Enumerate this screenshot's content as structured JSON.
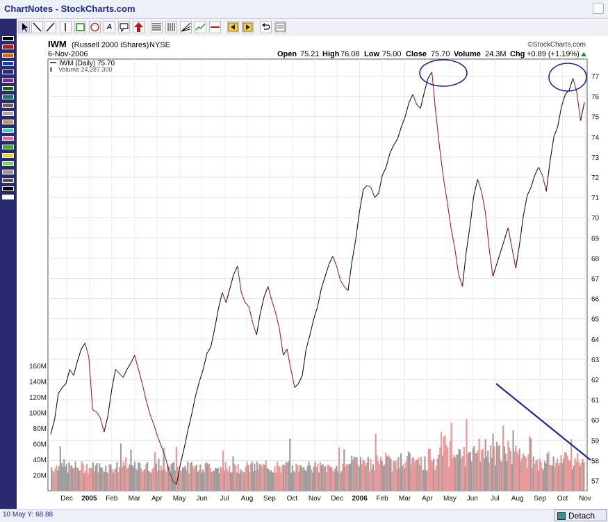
{
  "app": {
    "title": "ChartNotes - StockCharts.com"
  },
  "toolbar": {
    "tools": [
      "pointer",
      "line",
      "ray",
      "vertical-line",
      "rectangle",
      "ellipse",
      "text",
      "callout",
      "arrow",
      "horizontal-lines",
      "vertical-lines",
      "fibonacci",
      "trendline-tool",
      "hline-tool",
      "back",
      "forward",
      "undo",
      "properties"
    ]
  },
  "palette": {
    "colors": [
      "#000000",
      "#cc1111",
      "#dd6611",
      "#1133dd",
      "#2222aa",
      "#882299",
      "#116611",
      "#117777",
      "#666666",
      "#aaaaaa",
      "#bb9966",
      "#44cccc",
      "#ee66aa",
      "#22bb22",
      "#dddd22",
      "#66dd66",
      "#999999",
      "#555555",
      "#000000",
      "#ffffff"
    ]
  },
  "chart": {
    "symbol": "IWM",
    "name": "(Russell 2000 iShares)",
    "exchange": "NYSE",
    "copyright": "©StockCharts.com",
    "date": "6-Nov-2006",
    "open_label": "Open",
    "open": "75.21",
    "high_label": "High",
    "high": "76.08",
    "low_label": "Low",
    "low": "75.00",
    "close_label": "Close",
    "close": "75.70",
    "volume_label": "Volume",
    "volume": "24.3M",
    "chg_label": "Chg",
    "chg": "+0.89 (+1.19%)",
    "legend_price": "IWM (Daily) 75.70",
    "legend_volume": "Volume 24,287,300",
    "colors": {
      "price_up": "#111111",
      "price_down": "#a0203a",
      "vol_up": "#9e9e9e",
      "vol_down": "#e89a9a",
      "annotation": "#1a2890"
    }
  },
  "chart_data": {
    "type": "line",
    "x_labels": [
      "Dec",
      "2005",
      "Feb",
      "Mar",
      "Apr",
      "May",
      "Jun",
      "Jul",
      "Aug",
      "Sep",
      "Oct",
      "Nov",
      "Dec",
      "2006",
      "Feb",
      "Mar",
      "Apr",
      "May",
      "Jun",
      "Jul",
      "Aug",
      "Sep",
      "Oct",
      "Nov"
    ],
    "y_right_ticks": [
      57,
      58,
      59,
      60,
      61,
      62,
      63,
      64,
      65,
      66,
      67,
      68,
      69,
      70,
      71,
      72,
      73,
      74,
      75,
      76,
      77
    ],
    "ylim_price": [
      56.5,
      77.5
    ],
    "y_left_ticks": [
      "20M",
      "40M",
      "60M",
      "80M",
      "100M",
      "120M",
      "140M",
      "160M"
    ],
    "volume_ylim_millions": [
      0,
      160
    ],
    "grid": true,
    "series": [
      {
        "points": [
          [
            0,
            59.3
          ],
          [
            1,
            60.0
          ],
          [
            2,
            61.3
          ],
          [
            3,
            61.6
          ],
          [
            4,
            61.8
          ],
          [
            5,
            62.5
          ],
          [
            6,
            62.2
          ],
          [
            7,
            62.9
          ],
          [
            8,
            63.5
          ],
          [
            9,
            63.8
          ],
          [
            10,
            63.1
          ],
          [
            11,
            60.5
          ],
          [
            12,
            60.4
          ],
          [
            13,
            60.1
          ],
          [
            14,
            59.4
          ],
          [
            15,
            60.2
          ],
          [
            16,
            61.5
          ],
          [
            17,
            62.5
          ],
          [
            18,
            62.3
          ],
          [
            19,
            62.1
          ],
          [
            20,
            62.5
          ],
          [
            21,
            62.8
          ],
          [
            22,
            63.2
          ],
          [
            23,
            62.5
          ],
          [
            24,
            61.8
          ],
          [
            25,
            61.0
          ],
          [
            26,
            60.3
          ],
          [
            27,
            59.8
          ],
          [
            28,
            59.2
          ],
          [
            29,
            58.7
          ],
          [
            30,
            58.2
          ],
          [
            31,
            57.5
          ],
          [
            32,
            57.0
          ],
          [
            33,
            56.8
          ],
          [
            34,
            57.8
          ],
          [
            35,
            58.6
          ],
          [
            36,
            59.5
          ],
          [
            37,
            60.3
          ],
          [
            38,
            61.2
          ],
          [
            39,
            61.9
          ],
          [
            40,
            62.5
          ],
          [
            41,
            63.3
          ],
          [
            42,
            63.6
          ],
          [
            43,
            64.5
          ],
          [
            44,
            65.5
          ],
          [
            45,
            66.3
          ],
          [
            46,
            65.8
          ],
          [
            47,
            66.5
          ],
          [
            48,
            67.2
          ],
          [
            49,
            67.6
          ],
          [
            50,
            66.3
          ],
          [
            51,
            65.8
          ],
          [
            52,
            65.6
          ],
          [
            53,
            64.8
          ],
          [
            54,
            64.2
          ],
          [
            55,
            65.3
          ],
          [
            56,
            66.1
          ],
          [
            57,
            66.6
          ],
          [
            58,
            65.9
          ],
          [
            59,
            65.3
          ],
          [
            60,
            64.5
          ],
          [
            61,
            63.2
          ],
          [
            62,
            63.5
          ],
          [
            63,
            62.5
          ],
          [
            64,
            61.6
          ],
          [
            65,
            61.8
          ],
          [
            66,
            62.2
          ],
          [
            67,
            63.5
          ],
          [
            68,
            64.2
          ],
          [
            69,
            65.0
          ],
          [
            70,
            65.6
          ],
          [
            71,
            66.5
          ],
          [
            72,
            67.1
          ],
          [
            73,
            67.7
          ],
          [
            74,
            68.1
          ],
          [
            75,
            67.6
          ],
          [
            76,
            66.9
          ],
          [
            77,
            66.6
          ],
          [
            78,
            66.4
          ],
          [
            79,
            67.8
          ],
          [
            80,
            68.9
          ],
          [
            81,
            70.3
          ],
          [
            82,
            71.4
          ],
          [
            83,
            71.6
          ],
          [
            84,
            71.5
          ],
          [
            85,
            71.0
          ],
          [
            86,
            71.2
          ],
          [
            87,
            72.1
          ],
          [
            88,
            72.5
          ],
          [
            89,
            73.2
          ],
          [
            90,
            73.6
          ],
          [
            91,
            73.9
          ],
          [
            92,
            74.5
          ],
          [
            93,
            75.0
          ],
          [
            94,
            75.7
          ],
          [
            95,
            76.1
          ],
          [
            96,
            75.6
          ],
          [
            97,
            75.4
          ],
          [
            98,
            76.2
          ],
          [
            99,
            76.9
          ],
          [
            100,
            77.2
          ],
          [
            101,
            75.2
          ],
          [
            102,
            73.5
          ],
          [
            103,
            72.0
          ],
          [
            104,
            70.8
          ],
          [
            105,
            69.5
          ],
          [
            106,
            68.5
          ],
          [
            107,
            67.2
          ],
          [
            108,
            66.6
          ],
          [
            109,
            68.3
          ],
          [
            110,
            69.6
          ],
          [
            111,
            71.1
          ],
          [
            112,
            71.9
          ],
          [
            113,
            71.3
          ],
          [
            114,
            70.3
          ],
          [
            115,
            68.5
          ],
          [
            116,
            67.1
          ],
          [
            117,
            67.7
          ],
          [
            118,
            68.3
          ],
          [
            119,
            68.9
          ],
          [
            120,
            69.5
          ],
          [
            121,
            68.5
          ],
          [
            122,
            67.5
          ],
          [
            123,
            68.7
          ],
          [
            124,
            70.1
          ],
          [
            125,
            71.1
          ],
          [
            126,
            71.5
          ],
          [
            127,
            72.1
          ],
          [
            128,
            72.5
          ],
          [
            129,
            72.1
          ],
          [
            130,
            71.3
          ],
          [
            131,
            72.8
          ],
          [
            132,
            74.0
          ],
          [
            133,
            74.5
          ],
          [
            134,
            75.5
          ],
          [
            135,
            76.1
          ],
          [
            136,
            76.3
          ],
          [
            137,
            76.9
          ],
          [
            138,
            76.2
          ],
          [
            139,
            74.8
          ],
          [
            140,
            75.7
          ]
        ]
      }
    ]
  }
}
